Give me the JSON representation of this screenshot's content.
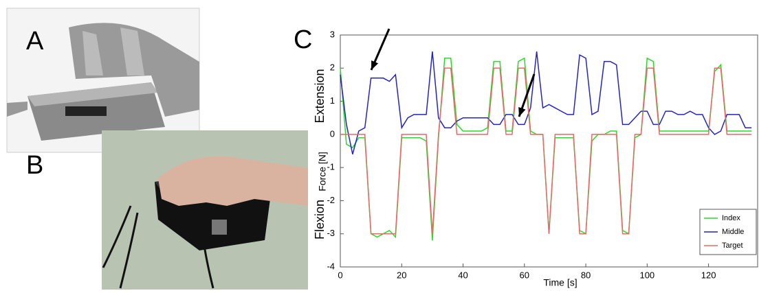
{
  "panels": {
    "a": "A",
    "b": "B",
    "c": "C"
  },
  "chart_data": {
    "type": "line",
    "xlabel": "Time [s]",
    "ylabel": "Force [N]",
    "annotations": [
      "Extension",
      "Flexion"
    ],
    "x": [
      0,
      2,
      4,
      6,
      8,
      10,
      12,
      14,
      16,
      18,
      20,
      22,
      24,
      26,
      28,
      30,
      32,
      34,
      36,
      38,
      40,
      42,
      44,
      46,
      48,
      50,
      52,
      54,
      56,
      58,
      60,
      62,
      64,
      66,
      68,
      70,
      72,
      74,
      76,
      78,
      80,
      82,
      84,
      86,
      88,
      90,
      92,
      94,
      96,
      98,
      100,
      102,
      104,
      106,
      108,
      110,
      112,
      114,
      116,
      118,
      120,
      122,
      124,
      126,
      128,
      130,
      132,
      134
    ],
    "series": [
      {
        "name": "Index",
        "color": "#22dd22",
        "values": [
          2.0,
          -0.3,
          -0.4,
          -0.1,
          -0.1,
          -3.0,
          -3.1,
          -3.0,
          -2.9,
          -3.1,
          -0.1,
          -0.1,
          -0.1,
          -0.1,
          -0.2,
          -3.2,
          -0.1,
          2.3,
          2.3,
          0.3,
          0.1,
          0.1,
          0.1,
          0.1,
          0.2,
          2.2,
          2.2,
          0.1,
          0.1,
          2.2,
          2.3,
          0.1,
          0.0,
          0.0,
          -3.0,
          -0.1,
          -0.1,
          -0.1,
          -0.1,
          -2.9,
          -3.0,
          -0.2,
          0.0,
          0.0,
          0.1,
          0.1,
          -2.9,
          -3.0,
          -0.1,
          0.0,
          2.3,
          2.2,
          0.1,
          0.1,
          0.1,
          0.1,
          0.1,
          0.1,
          0.1,
          0.1,
          0.1,
          1.9,
          2.1,
          0.1,
          0.1,
          0.1,
          0.1,
          0.1
        ]
      },
      {
        "name": "Middle",
        "color": "#2222cc",
        "values": [
          1.8,
          0.3,
          -0.6,
          0.1,
          0.2,
          1.7,
          1.7,
          1.7,
          1.6,
          1.8,
          0.2,
          0.5,
          0.6,
          0.6,
          0.6,
          2.5,
          0.5,
          0.2,
          0.2,
          0.4,
          0.5,
          0.5,
          0.5,
          0.5,
          0.5,
          0.3,
          0.3,
          0.6,
          0.6,
          0.3,
          0.3,
          0.8,
          2.5,
          0.8,
          0.9,
          0.8,
          0.7,
          0.6,
          0.6,
          2.4,
          2.3,
          0.6,
          0.7,
          2.2,
          2.2,
          2.1,
          0.3,
          0.3,
          0.5,
          0.7,
          0.7,
          0.3,
          0.3,
          0.7,
          0.7,
          0.6,
          0.6,
          0.7,
          0.6,
          0.6,
          0.2,
          0.0,
          0.1,
          0.6,
          0.6,
          0.6,
          0.2,
          0.2
        ]
      },
      {
        "name": "Target",
        "color": "#ee6666",
        "values": [
          0,
          0,
          0,
          0,
          0,
          -3,
          -3,
          -3,
          -3,
          -3,
          0,
          0,
          0,
          0,
          0,
          -3,
          0,
          2,
          2,
          0,
          0,
          0,
          0,
          0,
          0,
          2,
          2,
          0,
          0,
          2,
          2,
          0,
          0,
          0,
          -3,
          0,
          0,
          0,
          0,
          -3,
          -3,
          0,
          0,
          0,
          0,
          0,
          -3,
          -3,
          0,
          0,
          2,
          2,
          0,
          0,
          0,
          0,
          0,
          0,
          0,
          0,
          0,
          2,
          2,
          0,
          0,
          0,
          0,
          0
        ]
      }
    ],
    "xlim": [
      0,
      136
    ],
    "ylim": [
      -4,
      3
    ],
    "xticks": [
      0,
      20,
      40,
      60,
      80,
      100,
      120
    ],
    "yticks": [
      -4,
      -3,
      -2,
      -1,
      0,
      1,
      2,
      3
    ],
    "legend": "lower right"
  }
}
